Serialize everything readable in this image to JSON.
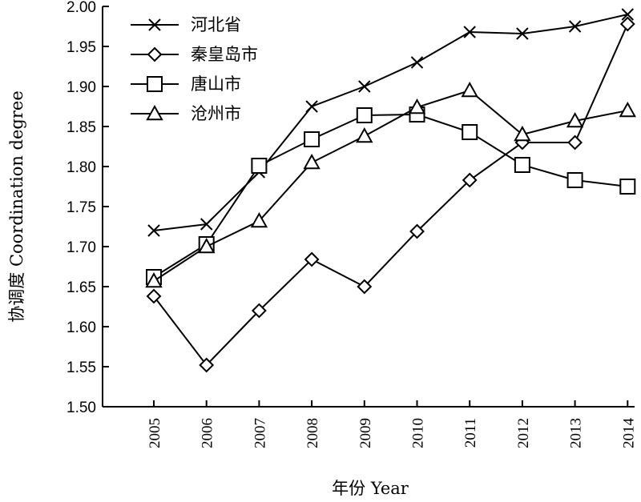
{
  "chart_data": {
    "type": "line",
    "title": "",
    "xlabel": "年份 Year",
    "ylabel": "协调度 Coordination degree",
    "x": [
      "2005",
      "2006",
      "2007",
      "2008",
      "2009",
      "2010",
      "2011",
      "2012",
      "2013",
      "2014"
    ],
    "yticks": [
      "1.50",
      "1.55",
      "1.60",
      "1.65",
      "1.70",
      "1.75",
      "1.80",
      "1.85",
      "1.90",
      "1.95",
      "2.00"
    ],
    "ylim": [
      1.5,
      2.0
    ],
    "grid": false,
    "legend_position": "top-left",
    "series": [
      {
        "name": "河北省",
        "marker": "x",
        "values": [
          1.72,
          1.728,
          1.793,
          1.875,
          1.9,
          1.93,
          1.968,
          1.966,
          1.975,
          1.99
        ]
      },
      {
        "name": "秦皇岛市",
        "marker": "diamond",
        "values": [
          1.638,
          1.552,
          1.62,
          1.684,
          1.65,
          1.719,
          1.783,
          1.83,
          1.83,
          1.978
        ]
      },
      {
        "name": "唐山市",
        "marker": "square",
        "values": [
          1.662,
          1.703,
          1.801,
          1.834,
          1.864,
          1.865,
          1.843,
          1.802,
          1.783,
          1.775
        ]
      },
      {
        "name": "沧州市",
        "marker": "triangle",
        "values": [
          1.657,
          1.7,
          1.732,
          1.805,
          1.838,
          1.874,
          1.895,
          1.84,
          1.857,
          1.87
        ]
      }
    ]
  }
}
